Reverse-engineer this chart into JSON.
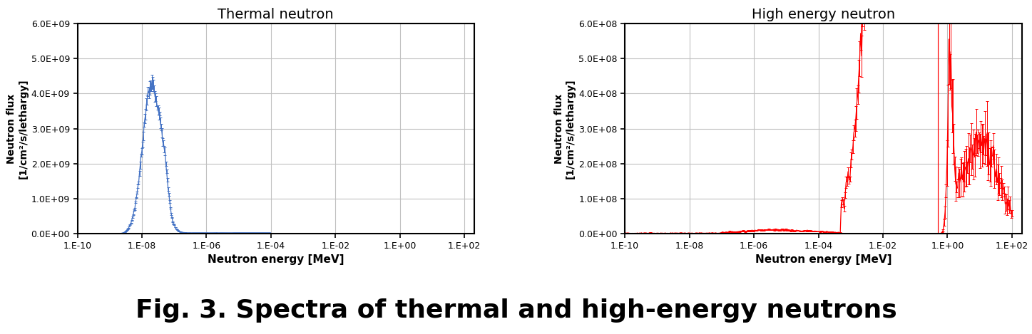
{
  "title1": "Thermal neutron",
  "title2": "High energy neutron",
  "xlabel": "Neutron energy [MeV]",
  "ylabel": "Neutron flux\n[1/cm²/s/lethargy]",
  "fig_caption": "Fig. 3. Spectra of thermal and high-energy neutrons",
  "ylim1": [
    0,
    6000000000.0
  ],
  "ylim2": [
    0,
    600000000.0
  ],
  "yticks1": [
    0,
    1000000000.0,
    2000000000.0,
    3000000000.0,
    4000000000.0,
    5000000000.0,
    6000000000.0
  ],
  "ytick_labels1": [
    "0.0E+00",
    "1.0E+09",
    "2.0E+09",
    "3.0E+09",
    "4.0E+09",
    "5.0E+09",
    "6.0E+09"
  ],
  "yticks2": [
    0,
    100000000.0,
    200000000.0,
    300000000.0,
    400000000.0,
    500000000.0,
    600000000.0
  ],
  "ytick_labels2": [
    "0.0E+00",
    "1.0E+08",
    "2.0E+08",
    "3.0E+08",
    "4.0E+08",
    "5.0E+08",
    "6.0E+08"
  ],
  "xtick_locs": [
    1e-10,
    1e-08,
    1e-06,
    0.0001,
    0.01,
    1.0,
    100.0
  ],
  "xtick_labels1": [
    "1.E-10",
    "1.E-08",
    "1.E-06",
    "1.E-04",
    "1.E-02",
    "1.E+00",
    "1.E+02"
  ],
  "xtick_labels2": [
    "1.E-10",
    "1.E-08",
    "1.E-06",
    "1.E-04",
    "1.E-02",
    "1.E+00",
    "1.E+02"
  ],
  "xlim": [
    1e-10,
    200.0
  ],
  "color1": "#4472c4",
  "color2": "#ff0000",
  "grid_color": "#c0c0c0",
  "background_color": "#ffffff",
  "title_fontsize": 14,
  "axis_label_fontsize": 11,
  "tick_fontsize": 9,
  "ylabel_fontsize": 10,
  "caption_fontsize": 26
}
